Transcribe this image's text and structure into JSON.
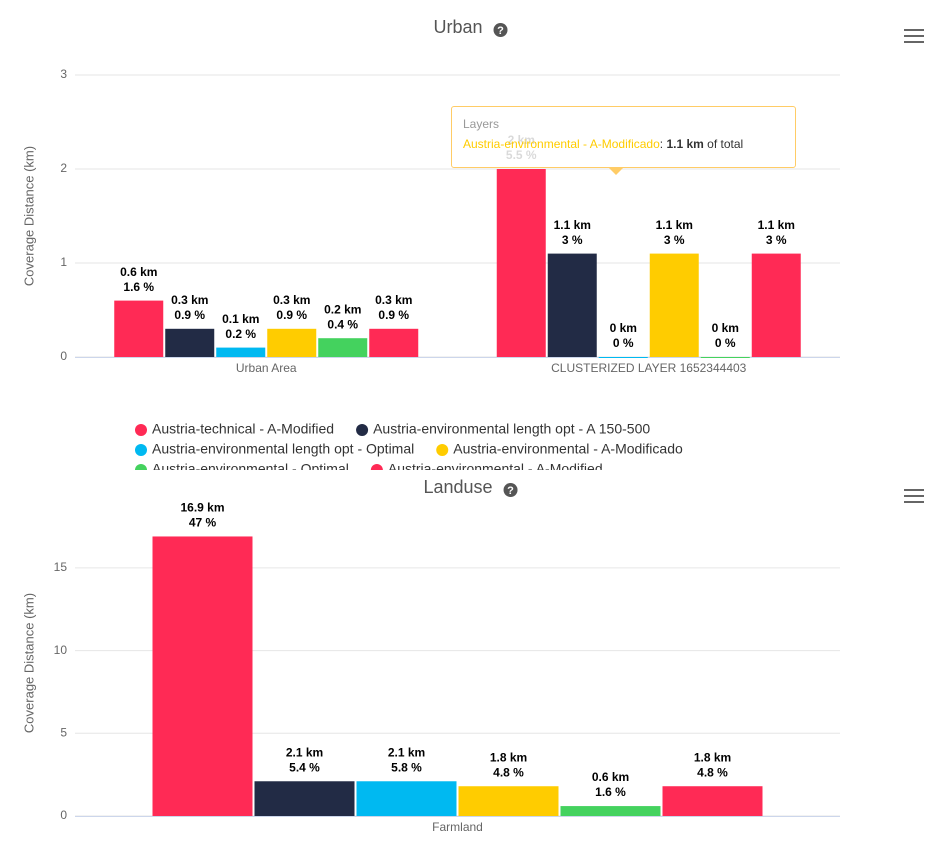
{
  "chart_data": [
    {
      "type": "bar",
      "title": "Urban",
      "y_axis_label": "Coverage Distance (km)",
      "categories": [
        "Urban Area",
        "CLUSTERIZED LAYER 1652344403"
      ],
      "ylim": [
        0,
        3
      ],
      "yticks": [
        0,
        1,
        2,
        3
      ],
      "grid": true,
      "legend": true,
      "series": [
        {
          "name": "Austria-technical - A-Modified",
          "color": "#ff2a55",
          "values": [
            0.6,
            2
          ],
          "value_labels": [
            "0.6 km",
            "2 km"
          ],
          "percent_labels": [
            "1.6 %",
            "5.5 %"
          ]
        },
        {
          "name": "Austria-environmental length opt - A 150-500",
          "color": "#222b45",
          "values": [
            0.3,
            1.1
          ],
          "value_labels": [
            "0.3 km",
            "1.1 km"
          ],
          "percent_labels": [
            "0.9 %",
            "3 %"
          ]
        },
        {
          "name": "Austria-environmental length opt - Optimal",
          "color": "#00b9f1",
          "values": [
            0.1,
            0
          ],
          "value_labels": [
            "0.1 km",
            "0 km"
          ],
          "percent_labels": [
            "0.2 %",
            "0 %"
          ]
        },
        {
          "name": "Austria-environmental - A-Modificado",
          "color": "#ffcc00",
          "values": [
            0.3,
            1.1
          ],
          "value_labels": [
            "0.3 km",
            "1.1 km"
          ],
          "percent_labels": [
            "0.9 %",
            "3 %"
          ]
        },
        {
          "name": "Austria-environmental - Optimal",
          "color": "#44d25e",
          "values": [
            0.2,
            0
          ],
          "value_labels": [
            "0.2 km",
            "0 km"
          ],
          "percent_labels": [
            "0.4 %",
            "0 %"
          ]
        },
        {
          "name": "Austria-environmental - A-Modified",
          "color": "#ff2a55",
          "values": [
            0.3,
            1.1
          ],
          "value_labels": [
            "0.3 km",
            "1.1 km"
          ],
          "percent_labels": [
            "0.9 %",
            "3 %"
          ]
        }
      ],
      "tooltip": {
        "title": "Layers",
        "separator": ":",
        "suffix": "of total"
      }
    },
    {
      "type": "bar",
      "title": "Landuse",
      "y_axis_label": "Coverage Distance (km)",
      "categories": [
        "Farmland"
      ],
      "ylim": [
        0,
        18.5
      ],
      "yticks": [
        0,
        5,
        10,
        15
      ],
      "grid": true,
      "legend": false,
      "series": [
        {
          "name": "Austria-technical - A-Modified",
          "color": "#ff2a55",
          "values": [
            16.9
          ],
          "value_labels": [
            "16.9 km"
          ],
          "percent_labels": [
            "47 %"
          ]
        },
        {
          "name": "Austria-environmental length opt - A 150-500",
          "color": "#222b45",
          "values": [
            2.1
          ],
          "value_labels": [
            "2.1 km"
          ],
          "percent_labels": [
            "5.4 %"
          ]
        },
        {
          "name": "Austria-environmental length opt - Optimal",
          "color": "#00b9f1",
          "values": [
            2.1
          ],
          "value_labels": [
            "2.1 km"
          ],
          "percent_labels": [
            "5.8 %"
          ]
        },
        {
          "name": "Austria-environmental - A-Modificado",
          "color": "#ffcc00",
          "values": [
            1.8
          ],
          "value_labels": [
            "1.8 km"
          ],
          "percent_labels": [
            "4.8 %"
          ]
        },
        {
          "name": "Austria-environmental - Optimal",
          "color": "#44d25e",
          "values": [
            0.6
          ],
          "value_labels": [
            "0.6 km"
          ],
          "percent_labels": [
            "1.6 %"
          ]
        },
        {
          "name": "Austria-environmental - A-Modified",
          "color": "#ff2a55",
          "values": [
            1.8
          ],
          "value_labels": [
            "1.8 km"
          ],
          "percent_labels": [
            "4.8 %"
          ]
        }
      ]
    }
  ]
}
